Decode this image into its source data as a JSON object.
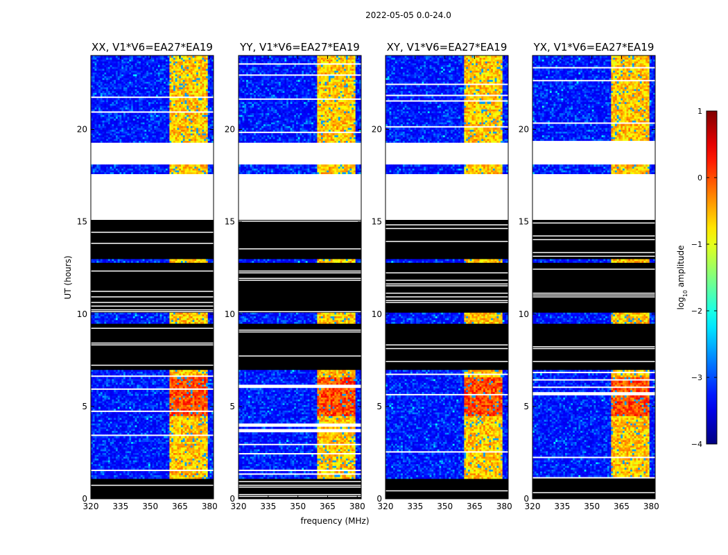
{
  "chart_data": {
    "type": "heatmap",
    "title": "2022-05-05 0.0-24.0",
    "xlabel": "frequency (MHz)",
    "ylabel": "UT (hours)",
    "xlim": [
      320,
      382
    ],
    "ylim": [
      0,
      24
    ],
    "xticks": [
      320,
      335,
      350,
      365,
      380
    ],
    "xtick_labels": [
      "320",
      "335",
      "350",
      "365",
      "380"
    ],
    "yticks": [
      0,
      5,
      10,
      15,
      20
    ],
    "ytick_labels": [
      "0",
      "5",
      "10",
      "15",
      "20"
    ],
    "colormap": "jet",
    "colorbar": {
      "label": "log10 amplitude",
      "label_prefix": "log",
      "label_sub": "10",
      "label_suffix": " amplitude",
      "range": [
        -4,
        1
      ],
      "ticks": [
        1,
        0,
        -1,
        -2,
        -3,
        -4
      ],
      "tick_labels": [
        "1",
        "0",
        "−1",
        "−2",
        "−3",
        "−4"
      ]
    },
    "panels": [
      {
        "title": "XX, V1*V6=EA27*EA19"
      },
      {
        "title": "YY, V1*V6=EA27*EA19"
      },
      {
        "title": "XY, V1*V6=EA27*EA19"
      },
      {
        "title": "YX, V1*V6=EA27*EA19"
      }
    ],
    "intense_band_mhz": [
      359.5,
      379
    ],
    "intense_band_log_amplitude": [
      -1.5,
      0.3
    ],
    "background_log_amplitude": [
      -3.5,
      -2.5
    ],
    "flagged_ut_ranges": [
      [
        0.0,
        1.05
      ],
      [
        7.0,
        9.5
      ],
      [
        10.1,
        12.8
      ],
      [
        13.0,
        15.1
      ]
    ],
    "missing_ut_ranges": [
      [
        15.1,
        17.55
      ],
      [
        18.1,
        19.3
      ]
    ]
  }
}
